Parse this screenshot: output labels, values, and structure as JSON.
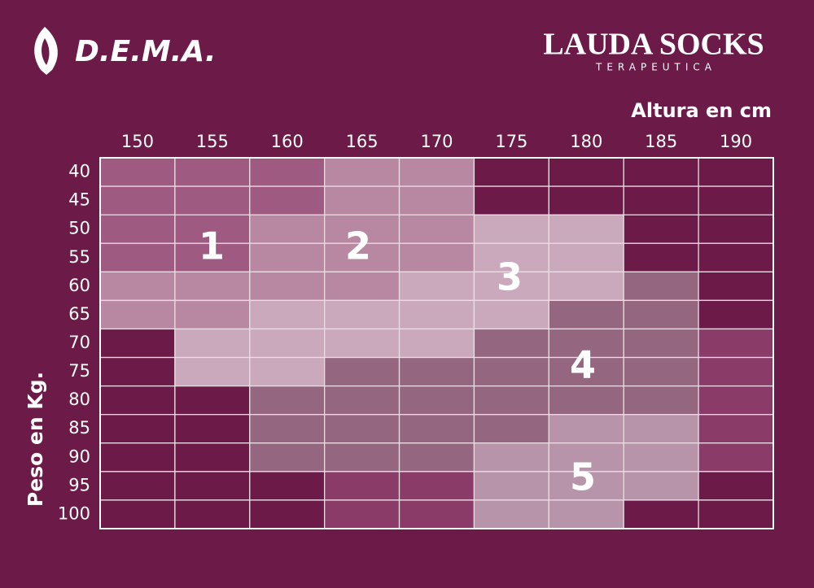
{
  "header": {
    "brand_left": "D.E.M.A.",
    "brand_right": "LAUDA SOCKS",
    "brand_right_sub": "TERAPEUTICA"
  },
  "table": {
    "column_title": "Altura en cm",
    "row_title": "Peso en Kg.",
    "columns": [
      "150",
      "155",
      "160",
      "165",
      "170",
      "175",
      "180",
      "185",
      "190"
    ],
    "rows": [
      {
        "label": "40",
        "cells": [
          "#9e5a81",
          "#9e5a81",
          "#9e5a81",
          "#b888a3",
          "#b888a3",
          "#6c1a47",
          "#6c1a47",
          "#6c1a47",
          "#6c1a47"
        ]
      },
      {
        "label": "45",
        "cells": [
          "#9e5a81",
          "#9e5a81",
          "#9e5a81",
          "#b888a3",
          "#b888a3",
          "#6c1a47",
          "#6c1a47",
          "#6c1a47",
          "#6c1a47"
        ]
      },
      {
        "label": "50",
        "cells": [
          "#9e5a81",
          "#9e5a81",
          "#b888a3",
          "#b888a3",
          "#b888a3",
          "#cba9bd",
          "#cba9bd",
          "#6c1a47",
          "#6c1a47"
        ]
      },
      {
        "label": "55",
        "cells": [
          "#9e5a81",
          "#9e5a81",
          "#b888a3",
          "#b888a3",
          "#b888a3",
          "#cba9bd",
          "#cba9bd",
          "#6c1a47",
          "#6c1a47"
        ]
      },
      {
        "label": "60",
        "cells": [
          "#b888a3",
          "#b888a3",
          "#b888a3",
          "#b888a3",
          "#cba9bd",
          "#cba9bd",
          "#cba9bd",
          "#94667f",
          "#6c1a47"
        ]
      },
      {
        "label": "65",
        "cells": [
          "#b888a3",
          "#b888a3",
          "#cba9bd",
          "#cba9bd",
          "#cba9bd",
          "#cba9bd",
          "#94667f",
          "#94667f",
          "#6c1a47"
        ]
      },
      {
        "label": "70",
        "cells": [
          "#6c1a47",
          "#cba9bd",
          "#cba9bd",
          "#cba9bd",
          "#cba9bd",
          "#94667f",
          "#94667f",
          "#94667f",
          "#8a3b67"
        ]
      },
      {
        "label": "75",
        "cells": [
          "#6c1a47",
          "#cba9bd",
          "#cba9bd",
          "#94667f",
          "#94667f",
          "#94667f",
          "#94667f",
          "#94667f",
          "#8a3b67"
        ]
      },
      {
        "label": "80",
        "cells": [
          "#6c1a47",
          "#6c1a47",
          "#94667f",
          "#94667f",
          "#94667f",
          "#94667f",
          "#94667f",
          "#94667f",
          "#8a3b67"
        ]
      },
      {
        "label": "85",
        "cells": [
          "#6c1a47",
          "#6c1a47",
          "#94667f",
          "#94667f",
          "#94667f",
          "#94667f",
          "#b794a9",
          "#b794a9",
          "#8a3b67"
        ]
      },
      {
        "label": "90",
        "cells": [
          "#6c1a47",
          "#6c1a47",
          "#94667f",
          "#94667f",
          "#94667f",
          "#b794a9",
          "#b794a9",
          "#b794a9",
          "#8a3b67"
        ]
      },
      {
        "label": "95",
        "cells": [
          "#6c1a47",
          "#6c1a47",
          "#6c1a47",
          "#8a3b67",
          "#8a3b67",
          "#b794a9",
          "#b794a9",
          "#b794a9",
          "#6c1a47"
        ]
      },
      {
        "label": "100",
        "cells": [
          "#6c1a47",
          "#6c1a47",
          "#6c1a47",
          "#8a3b67",
          "#8a3b67",
          "#b794a9",
          "#b794a9",
          "#6c1a47",
          "#6c1a47"
        ]
      }
    ]
  },
  "zones": [
    {
      "label": "1"
    },
    {
      "label": "2"
    },
    {
      "label": "3"
    },
    {
      "label": "4"
    },
    {
      "label": "5"
    }
  ]
}
